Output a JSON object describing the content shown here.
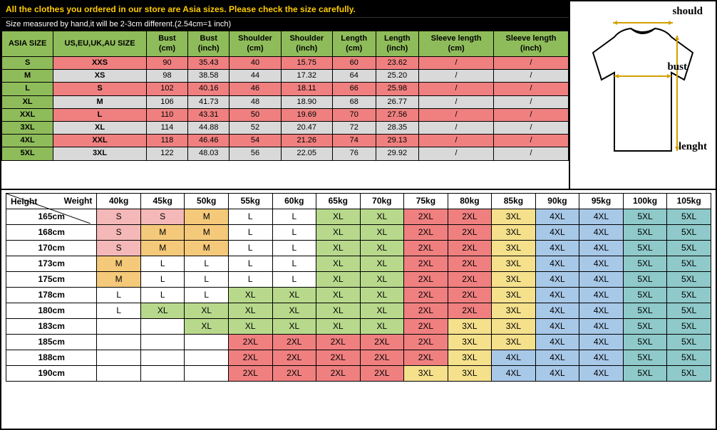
{
  "banner": "All the clothes you ordered in our store are Asia sizes. Please check the size carefully.",
  "subbanner": "Size measured by hand,it will be 2-3cm different.(2.54cm=1 inch)",
  "size_table": {
    "headers": [
      "ASIA SIZE",
      "US,EU,UK,AU SIZE",
      "Bust (cm)",
      "Bust (inch)",
      "Shoulder (cm)",
      "Shoulder (inch)",
      "Length (cm)",
      "Length (inch)",
      "Sleeve length (cm)",
      "Sleeve length (inch)"
    ],
    "rows": [
      {
        "asia": "S",
        "us": "XXS",
        "bust_cm": "90",
        "bust_in": "35.43",
        "sh_cm": "40",
        "sh_in": "15.75",
        "len_cm": "60",
        "len_in": "23.62",
        "sl_cm": "/",
        "sl_in": "/"
      },
      {
        "asia": "M",
        "us": "XS",
        "bust_cm": "98",
        "bust_in": "38.58",
        "sh_cm": "44",
        "sh_in": "17.32",
        "len_cm": "64",
        "len_in": "25.20",
        "sl_cm": "/",
        "sl_in": "/"
      },
      {
        "asia": "L",
        "us": "S",
        "bust_cm": "102",
        "bust_in": "40.16",
        "sh_cm": "46",
        "sh_in": "18.11",
        "len_cm": "66",
        "len_in": "25.98",
        "sl_cm": "/",
        "sl_in": "/"
      },
      {
        "asia": "XL",
        "us": "M",
        "bust_cm": "106",
        "bust_in": "41.73",
        "sh_cm": "48",
        "sh_in": "18.90",
        "len_cm": "68",
        "len_in": "26.77",
        "sl_cm": "/",
        "sl_in": "/"
      },
      {
        "asia": "XXL",
        "us": "L",
        "bust_cm": "110",
        "bust_in": "43.31",
        "sh_cm": "50",
        "sh_in": "19.69",
        "len_cm": "70",
        "len_in": "27.56",
        "sl_cm": "/",
        "sl_in": "/"
      },
      {
        "asia": "3XL",
        "us": "XL",
        "bust_cm": "114",
        "bust_in": "44.88",
        "sh_cm": "52",
        "sh_in": "20.47",
        "len_cm": "72",
        "len_in": "28.35",
        "sl_cm": "/",
        "sl_in": "/"
      },
      {
        "asia": "4XL",
        "us": "XXL",
        "bust_cm": "118",
        "bust_in": "46.46",
        "sh_cm": "54",
        "sh_in": "21.26",
        "len_cm": "74",
        "len_in": "29.13",
        "sl_cm": "/",
        "sl_in": "/"
      },
      {
        "asia": "5XL",
        "us": "3XL",
        "bust_cm": "122",
        "bust_in": "48.03",
        "sh_cm": "56",
        "sh_in": "22.05",
        "len_cm": "76",
        "len_in": "29.92",
        "sl_cm": "/",
        "sl_in": "/"
      }
    ]
  },
  "diagram": {
    "should": "should",
    "bust": "bust",
    "lenght": "lenght"
  },
  "rec_table": {
    "corner_weight": "Weight",
    "corner_height": "Height",
    "weights": [
      "40kg",
      "45kg",
      "50kg",
      "55kg",
      "60kg",
      "65kg",
      "70kg",
      "75kg",
      "80kg",
      "85kg",
      "90kg",
      "95kg",
      "100kg",
      "105kg"
    ],
    "heights": [
      "165cm",
      "168cm",
      "170cm",
      "173cm",
      "175cm",
      "178cm",
      "180cm",
      "183cm",
      "185cm",
      "188cm",
      "190cm"
    ],
    "cells": [
      [
        [
          "S",
          "pink"
        ],
        [
          "S",
          "pink"
        ],
        [
          "M",
          "orange"
        ],
        [
          "L",
          "white"
        ],
        [
          "L",
          "white"
        ],
        [
          "XL",
          "green"
        ],
        [
          "XL",
          "green"
        ],
        [
          "2XL",
          "red"
        ],
        [
          "2XL",
          "red"
        ],
        [
          "3XL",
          "yellow"
        ],
        [
          "4XL",
          "blue"
        ],
        [
          "4XL",
          "blue"
        ],
        [
          "5XL",
          "teal"
        ],
        [
          "5XL",
          "teal"
        ]
      ],
      [
        [
          "S",
          "pink"
        ],
        [
          "M",
          "orange"
        ],
        [
          "M",
          "orange"
        ],
        [
          "L",
          "white"
        ],
        [
          "L",
          "white"
        ],
        [
          "XL",
          "green"
        ],
        [
          "XL",
          "green"
        ],
        [
          "2XL",
          "red"
        ],
        [
          "2XL",
          "red"
        ],
        [
          "3XL",
          "yellow"
        ],
        [
          "4XL",
          "blue"
        ],
        [
          "4XL",
          "blue"
        ],
        [
          "5XL",
          "teal"
        ],
        [
          "5XL",
          "teal"
        ]
      ],
      [
        [
          "S",
          "pink"
        ],
        [
          "M",
          "orange"
        ],
        [
          "M",
          "orange"
        ],
        [
          "L",
          "white"
        ],
        [
          "L",
          "white"
        ],
        [
          "XL",
          "green"
        ],
        [
          "XL",
          "green"
        ],
        [
          "2XL",
          "red"
        ],
        [
          "2XL",
          "red"
        ],
        [
          "3XL",
          "yellow"
        ],
        [
          "4XL",
          "blue"
        ],
        [
          "4XL",
          "blue"
        ],
        [
          "5XL",
          "teal"
        ],
        [
          "5XL",
          "teal"
        ]
      ],
      [
        [
          "M",
          "orange"
        ],
        [
          "L",
          "white"
        ],
        [
          "L",
          "white"
        ],
        [
          "L",
          "white"
        ],
        [
          "L",
          "white"
        ],
        [
          "XL",
          "green"
        ],
        [
          "XL",
          "green"
        ],
        [
          "2XL",
          "red"
        ],
        [
          "2XL",
          "red"
        ],
        [
          "3XL",
          "yellow"
        ],
        [
          "4XL",
          "blue"
        ],
        [
          "4XL",
          "blue"
        ],
        [
          "5XL",
          "teal"
        ],
        [
          "5XL",
          "teal"
        ]
      ],
      [
        [
          "M",
          "orange"
        ],
        [
          "L",
          "white"
        ],
        [
          "L",
          "white"
        ],
        [
          "L",
          "white"
        ],
        [
          "L",
          "white"
        ],
        [
          "XL",
          "green"
        ],
        [
          "XL",
          "green"
        ],
        [
          "2XL",
          "red"
        ],
        [
          "2XL",
          "red"
        ],
        [
          "3XL",
          "yellow"
        ],
        [
          "4XL",
          "blue"
        ],
        [
          "4XL",
          "blue"
        ],
        [
          "5XL",
          "teal"
        ],
        [
          "5XL",
          "teal"
        ]
      ],
      [
        [
          "L",
          "white"
        ],
        [
          "L",
          "white"
        ],
        [
          "L",
          "white"
        ],
        [
          "XL",
          "green"
        ],
        [
          "XL",
          "green"
        ],
        [
          "XL",
          "green"
        ],
        [
          "XL",
          "green"
        ],
        [
          "2XL",
          "red"
        ],
        [
          "2XL",
          "red"
        ],
        [
          "3XL",
          "yellow"
        ],
        [
          "4XL",
          "blue"
        ],
        [
          "4XL",
          "blue"
        ],
        [
          "5XL",
          "teal"
        ],
        [
          "5XL",
          "teal"
        ]
      ],
      [
        [
          "L",
          "white"
        ],
        [
          "XL",
          "green"
        ],
        [
          "XL",
          "green"
        ],
        [
          "XL",
          "green"
        ],
        [
          "XL",
          "green"
        ],
        [
          "XL",
          "green"
        ],
        [
          "XL",
          "green"
        ],
        [
          "2XL",
          "red"
        ],
        [
          "2XL",
          "red"
        ],
        [
          "3XL",
          "yellow"
        ],
        [
          "4XL",
          "blue"
        ],
        [
          "4XL",
          "blue"
        ],
        [
          "5XL",
          "teal"
        ],
        [
          "5XL",
          "teal"
        ]
      ],
      [
        [
          "",
          "white"
        ],
        [
          "",
          "white"
        ],
        [
          "XL",
          "green"
        ],
        [
          "XL",
          "green"
        ],
        [
          "XL",
          "green"
        ],
        [
          "XL",
          "green"
        ],
        [
          "XL",
          "green"
        ],
        [
          "2XL",
          "red"
        ],
        [
          "3XL",
          "yellow"
        ],
        [
          "3XL",
          "yellow"
        ],
        [
          "4XL",
          "blue"
        ],
        [
          "4XL",
          "blue"
        ],
        [
          "5XL",
          "teal"
        ],
        [
          "5XL",
          "teal"
        ]
      ],
      [
        [
          "",
          "white"
        ],
        [
          "",
          "white"
        ],
        [
          "",
          "white"
        ],
        [
          "2XL",
          "red"
        ],
        [
          "2XL",
          "red"
        ],
        [
          "2XL",
          "red"
        ],
        [
          "2XL",
          "red"
        ],
        [
          "2XL",
          "red"
        ],
        [
          "3XL",
          "yellow"
        ],
        [
          "3XL",
          "yellow"
        ],
        [
          "4XL",
          "blue"
        ],
        [
          "4XL",
          "blue"
        ],
        [
          "5XL",
          "teal"
        ],
        [
          "5XL",
          "teal"
        ]
      ],
      [
        [
          "",
          "white"
        ],
        [
          "",
          "white"
        ],
        [
          "",
          "white"
        ],
        [
          "2XL",
          "red"
        ],
        [
          "2XL",
          "red"
        ],
        [
          "2XL",
          "red"
        ],
        [
          "2XL",
          "red"
        ],
        [
          "2XL",
          "red"
        ],
        [
          "3XL",
          "yellow"
        ],
        [
          "4XL",
          "blue"
        ],
        [
          "4XL",
          "blue"
        ],
        [
          "4XL",
          "blue"
        ],
        [
          "5XL",
          "teal"
        ],
        [
          "5XL",
          "teal"
        ]
      ],
      [
        [
          "",
          "white"
        ],
        [
          "",
          "white"
        ],
        [
          "",
          "white"
        ],
        [
          "2XL",
          "red"
        ],
        [
          "2XL",
          "red"
        ],
        [
          "2XL",
          "red"
        ],
        [
          "2XL",
          "red"
        ],
        [
          "3XL",
          "yellow"
        ],
        [
          "3XL",
          "yellow"
        ],
        [
          "4XL",
          "blue"
        ],
        [
          "4XL",
          "blue"
        ],
        [
          "4XL",
          "blue"
        ],
        [
          "5XL",
          "teal"
        ],
        [
          "5XL",
          "teal"
        ]
      ]
    ]
  },
  "colors": {
    "pink": "#f5b8b8",
    "orange": "#f5c97a",
    "white": "#ffffff",
    "green": "#b8d98c",
    "red": "#f08080",
    "yellow": "#f5e08c",
    "blue": "#a8c8e8",
    "teal": "#8fc9c9",
    "header_green": "#8fbc5a",
    "row_gray": "#d9d9d9"
  }
}
